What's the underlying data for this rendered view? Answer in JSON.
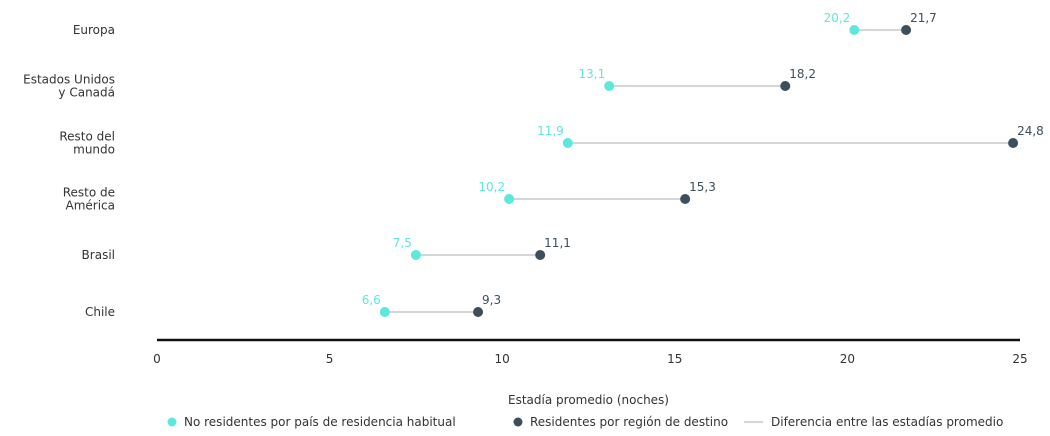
{
  "chart_data": {
    "type": "dumbbell",
    "title": "",
    "xlabel": "Estadía promedio (noches)",
    "ylabel": "",
    "xlim": [
      0,
      25
    ],
    "x_ticks": [
      "0",
      "5",
      "10",
      "15",
      "20",
      "25"
    ],
    "grid": false,
    "legend_position": "bottom",
    "categories": [
      "Europa",
      "Estados Unidos y Canadá",
      "Resto del mundo",
      "Resto de América",
      "Brasil",
      "Chile"
    ],
    "category_lines": [
      [
        "Europa"
      ],
      [
        "Estados Unidos",
        "y Canadá"
      ],
      [
        "Resto del",
        "mundo"
      ],
      [
        "Resto de",
        "América"
      ],
      [
        "Brasil"
      ],
      [
        "Chile"
      ]
    ],
    "series": [
      {
        "name": "No residentes por país de residencia habitual",
        "color": "#5ce8dc",
        "values": [
          20.2,
          13.1,
          11.9,
          10.2,
          7.5,
          6.6
        ],
        "labels": [
          "20,2",
          "13,1",
          "11,9",
          "10,2",
          "7,5",
          "6,6"
        ]
      },
      {
        "name": "Residentes por región de destino",
        "color": "#3b4f5c",
        "values": [
          21.7,
          18.2,
          24.8,
          15.3,
          11.1,
          9.3
        ],
        "labels": [
          "21,7",
          "18,2",
          "24,8",
          "15,3",
          "11,1",
          "9,3"
        ]
      }
    ],
    "connector": {
      "name": "Diferencia entre las estadías promedio",
      "color": "#c6cacc"
    },
    "axis_color": "#111111",
    "text_color": "#333333"
  }
}
